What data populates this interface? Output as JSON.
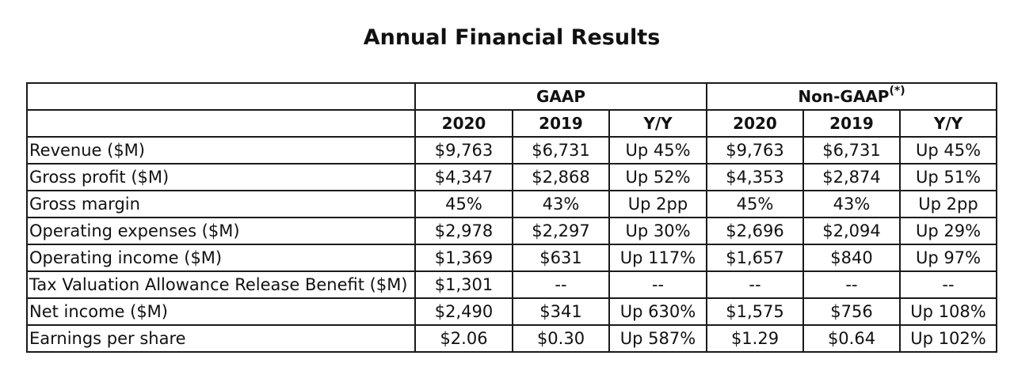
{
  "title": "Annual Financial Results",
  "groups": {
    "gaap": "GAAP",
    "non_gaap": "Non-GAAP",
    "non_gaap_mark": "(*)"
  },
  "columns": [
    "2020",
    "2019",
    "Y/Y",
    "2020",
    "2019",
    "Y/Y"
  ],
  "rows": [
    {
      "label": "Revenue ($M)",
      "values": [
        "$9,763",
        "$6,731",
        "Up 45%",
        "$9,763",
        "$6,731",
        "Up 45%"
      ]
    },
    {
      "label": "Gross profit ($M)",
      "values": [
        "$4,347",
        "$2,868",
        "Up 52%",
        "$4,353",
        "$2,874",
        "Up 51%"
      ]
    },
    {
      "label": "Gross margin",
      "values": [
        "45%",
        "43%",
        "Up 2pp",
        "45%",
        "43%",
        "Up 2pp"
      ]
    },
    {
      "label": "Operating expenses ($M)",
      "values": [
        "$2,978",
        "$2,297",
        "Up 30%",
        "$2,696",
        "$2,094",
        "Up 29%"
      ]
    },
    {
      "label": "Operating income ($M)",
      "values": [
        "$1,369",
        "$631",
        "Up 117%",
        "$1,657",
        "$840",
        "Up 97%"
      ]
    },
    {
      "label": "Tax Valuation Allowance Release Benefit ($M)",
      "values": [
        "$1,301",
        "--",
        "--",
        "--",
        "--",
        "--"
      ]
    },
    {
      "label": "Net income ($M)",
      "values": [
        "$2,490",
        "$341",
        "Up 630%",
        "$1,575",
        "$756",
        "Up 108%"
      ]
    },
    {
      "label": "Earnings per share",
      "values": [
        "$2.06",
        "$0.30",
        "Up 587%",
        "$1.29",
        "$0.64",
        "Up 102%"
      ]
    }
  ]
}
